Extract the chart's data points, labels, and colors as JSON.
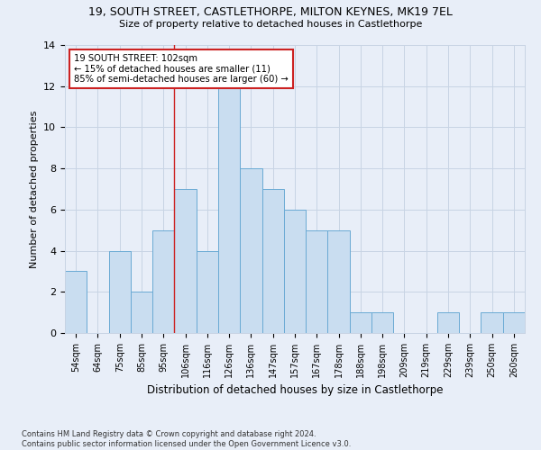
{
  "title_line1": "19, SOUTH STREET, CASTLETHORPE, MILTON KEYNES, MK19 7EL",
  "title_line2": "Size of property relative to detached houses in Castlethorpe",
  "xlabel": "Distribution of detached houses by size in Castlethorpe",
  "ylabel": "Number of detached properties",
  "categories": [
    "54sqm",
    "64sqm",
    "75sqm",
    "85sqm",
    "95sqm",
    "106sqm",
    "116sqm",
    "126sqm",
    "136sqm",
    "147sqm",
    "157sqm",
    "167sqm",
    "178sqm",
    "188sqm",
    "198sqm",
    "209sqm",
    "219sqm",
    "229sqm",
    "239sqm",
    "250sqm",
    "260sqm"
  ],
  "values": [
    3,
    0,
    4,
    2,
    5,
    7,
    4,
    12,
    8,
    7,
    6,
    5,
    5,
    1,
    1,
    0,
    0,
    1,
    0,
    1,
    1
  ],
  "bar_color": "#c9ddf0",
  "bar_edge_color": "#6aaad4",
  "grid_color": "#c8d4e4",
  "background_color": "#e8eef8",
  "annotation_line1": "19 SOUTH STREET: 102sqm",
  "annotation_line2": "← 15% of detached houses are smaller (11)",
  "annotation_line3": "85% of semi-detached houses are larger (60) →",
  "vline_x_index": 4.5,
  "vline_color": "#cc2222",
  "annotation_box_color": "#cc2222",
  "ylim": [
    0,
    14
  ],
  "yticks": [
    0,
    2,
    4,
    6,
    8,
    10,
    12,
    14
  ],
  "footer_line1": "Contains HM Land Registry data © Crown copyright and database right 2024.",
  "footer_line2": "Contains public sector information licensed under the Open Government Licence v3.0."
}
